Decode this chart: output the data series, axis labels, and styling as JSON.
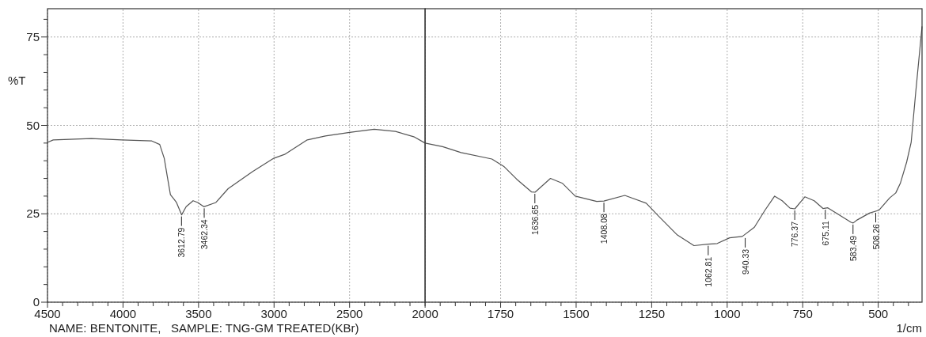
{
  "chart_data": [
    {
      "type": "line",
      "ylabel": "%T",
      "xlim": [
        4500,
        2000
      ],
      "ylim": [
        0,
        83
      ],
      "xticks": [
        4500,
        {
          "value": 4400,
          "label": null
        },
        {
          "value": 4300,
          "label": null
        },
        {
          "value": 4200,
          "label": null
        },
        {
          "value": 4100,
          "label": null
        },
        4000,
        {
          "value": 3900,
          "label": null
        },
        {
          "value": 3800,
          "label": null
        },
        {
          "value": 3700,
          "label": null
        },
        {
          "value": 3600,
          "label": null
        },
        3500,
        {
          "value": 3400,
          "label": null
        },
        {
          "value": 3300,
          "label": null
        },
        {
          "value": 3200,
          "label": null
        },
        {
          "value": 3100,
          "label": null
        },
        3000,
        {
          "value": 2900,
          "label": null
        },
        {
          "value": 2800,
          "label": null
        },
        {
          "value": 2700,
          "label": null
        },
        {
          "value": 2600,
          "label": null
        },
        2500,
        {
          "value": 2400,
          "label": null
        },
        {
          "value": 2300,
          "label": null
        },
        {
          "value": 2200,
          "label": null
        },
        {
          "value": 2100,
          "label": null
        },
        {
          "value": 2000,
          "label": null
        }
      ],
      "yticks": [
        0,
        {
          "value": 5,
          "label": null
        },
        {
          "value": 10,
          "label": null
        },
        {
          "value": 15,
          "label": null
        },
        {
          "value": 20,
          "label": null
        },
        25,
        {
          "value": 30,
          "label": null
        },
        {
          "value": 35,
          "label": null
        },
        {
          "value": 40,
          "label": null
        },
        {
          "value": 45,
          "label": null
        },
        50,
        {
          "value": 55,
          "label": null
        },
        {
          "value": 60,
          "label": null
        },
        {
          "value": 65,
          "label": null
        },
        {
          "value": 70,
          "label": null
        },
        75,
        {
          "value": 80,
          "label": null
        }
      ],
      "grid": true,
      "line_style": "solid",
      "series": [
        {
          "color": "#555555",
          "x": [
            4500,
            4462,
            4210,
            4009,
            3809,
            3757,
            3727,
            3707,
            3686,
            3662,
            3646,
            3612,
            3582,
            3536,
            3505,
            3465,
            3385,
            3304,
            3143,
            3002,
            2930,
            2780,
            2660,
            2500,
            2337,
            2196,
            2075,
            2000
          ],
          "values": [
            45.2,
            45.9,
            46.3,
            45.9,
            45.6,
            44.6,
            40.7,
            35.6,
            30.4,
            29.1,
            28.2,
            24.7,
            27.0,
            28.7,
            28.2,
            27.0,
            28.2,
            32.1,
            36.9,
            40.7,
            41.8,
            45.9,
            47.0,
            48.0,
            48.9,
            48.3,
            46.8,
            45.0
          ]
        }
      ],
      "annotations": [
        {
          "text": "3612.79",
          "x": 3612.79,
          "y": 24.7
        },
        {
          "text": "3462.34",
          "x": 3462.34,
          "y": 27.0
        },
        "NAME: BENTONITE,   SAMPLE: TNG-GM TREATED(KBr)"
      ]
    },
    {
      "type": "line",
      "xlabel": "1/cm",
      "xlim": [
        2000,
        355
      ],
      "ylim": [
        0,
        83
      ],
      "xticks": [
        2000,
        {
          "value": 1950,
          "label": null
        },
        {
          "value": 1900,
          "label": null
        },
        {
          "value": 1850,
          "label": null
        },
        {
          "value": 1800,
          "label": null
        },
        1750,
        {
          "value": 1700,
          "label": null
        },
        {
          "value": 1650,
          "label": null
        },
        {
          "value": 1600,
          "label": null
        },
        {
          "value": 1550,
          "label": null
        },
        1500,
        {
          "value": 1450,
          "label": null
        },
        {
          "value": 1400,
          "label": null
        },
        {
          "value": 1350,
          "label": null
        },
        {
          "value": 1300,
          "label": null
        },
        1250,
        {
          "value": 1200,
          "label": null
        },
        {
          "value": 1150,
          "label": null
        },
        {
          "value": 1100,
          "label": null
        },
        {
          "value": 1050,
          "label": null
        },
        1000,
        {
          "value": 950,
          "label": null
        },
        {
          "value": 900,
          "label": null
        },
        {
          "value": 850,
          "label": null
        },
        {
          "value": 800,
          "label": null
        },
        750,
        {
          "value": 700,
          "label": null
        },
        {
          "value": 650,
          "label": null
        },
        {
          "value": 600,
          "label": null
        },
        {
          "value": 550,
          "label": null
        },
        500,
        {
          "value": 450,
          "label": null
        },
        {
          "value": 400,
          "label": null
        }
      ],
      "yticks": [
        0,
        25,
        50,
        75
      ],
      "tick_labels": "x",
      "grid": true,
      "line_style": "solid",
      "series": [
        {
          "color": "#555555",
          "x": [
            2000,
            1942,
            1881,
            1779,
            1738,
            1697,
            1648,
            1636,
            1585,
            1545,
            1503,
            1432,
            1408,
            1339,
            1268,
            1228,
            1165,
            1110,
            1063,
            1033,
            992,
            950,
            910,
            875,
            843,
            818,
            792,
            776,
            743,
            712,
            683,
            667,
            630,
            590,
            583,
            569,
            529,
            498,
            462,
            442,
            427,
            406,
            391,
            376,
            355
          ],
          "values": [
            45.0,
            44.0,
            42.3,
            40.5,
            38.3,
            34.8,
            31.2,
            31.1,
            35.0,
            33.6,
            30.0,
            28.5,
            28.6,
            30.2,
            28.0,
            24.4,
            19.0,
            16.0,
            16.4,
            16.6,
            18.2,
            18.6,
            21.2,
            26.0,
            30.0,
            28.7,
            26.6,
            26.4,
            29.8,
            28.7,
            26.5,
            26.7,
            24.7,
            22.6,
            22.4,
            23.3,
            25.2,
            26.0,
            29.5,
            30.9,
            33.6,
            39.6,
            45.2,
            59.3,
            78.0
          ]
        }
      ],
      "annotations": [
        {
          "text": "1636.65",
          "x": 1636.65,
          "y": 31.1
        },
        {
          "text": "1408.08",
          "x": 1408.08,
          "y": 28.6
        },
        {
          "text": "1062.81",
          "x": 1062.81,
          "y": 16.4
        },
        {
          "text": "940.33",
          "x": 940.33,
          "y": 18.6
        },
        {
          "text": "776.37",
          "x": 776.37,
          "y": 26.4
        },
        {
          "text": "675.11",
          "x": 675.11,
          "y": 26.6
        },
        {
          "text": "583.49",
          "x": 583.49,
          "y": 22.4
        },
        {
          "text": "508.26",
          "x": 508.26,
          "y": 25.7
        }
      ]
    }
  ]
}
